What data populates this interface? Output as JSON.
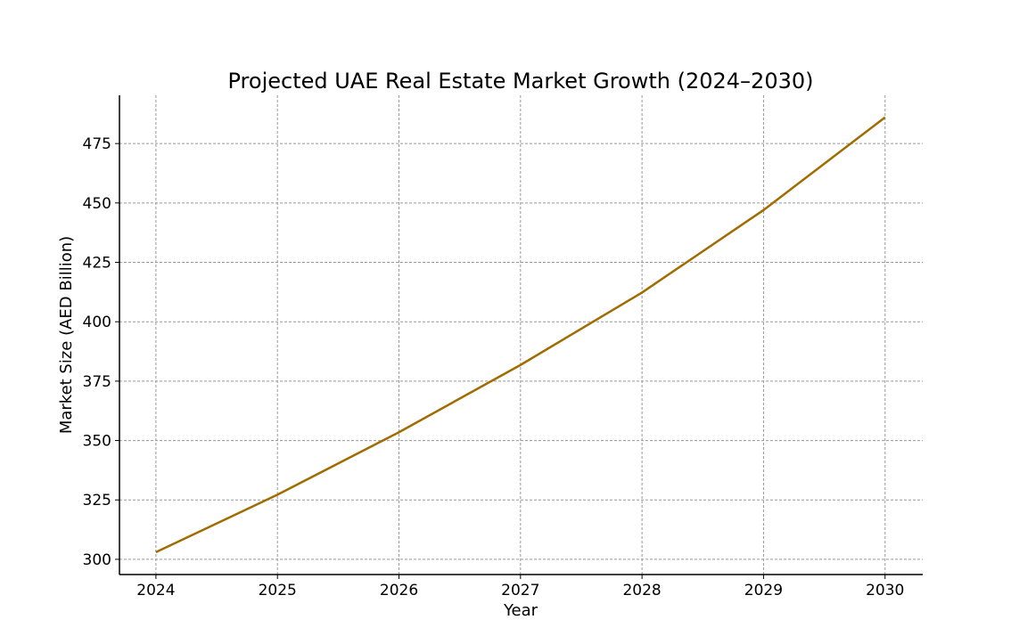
{
  "chart_data": {
    "type": "line",
    "title": "Projected UAE Real Estate Market Growth (2024–2030)",
    "xlabel": "Year",
    "ylabel": "Market Size (AED Billion)",
    "x": [
      2024,
      2025,
      2026,
      2027,
      2028,
      2029,
      2030
    ],
    "series": [
      {
        "name": "Market Size",
        "values": [
          303,
          327.2,
          353.5,
          381.8,
          412.3,
          447,
          486
        ],
        "color": "#a06c00"
      }
    ],
    "xticks": [
      "2024",
      "2025",
      "2026",
      "2027",
      "2028",
      "2029",
      "2030"
    ],
    "yticks": [
      300,
      325,
      350,
      375,
      400,
      425,
      450,
      475
    ],
    "xlim": [
      2023.7,
      2030.31
    ],
    "ylim": [
      293.6,
      495.3
    ],
    "grid": true,
    "legend": "none"
  }
}
